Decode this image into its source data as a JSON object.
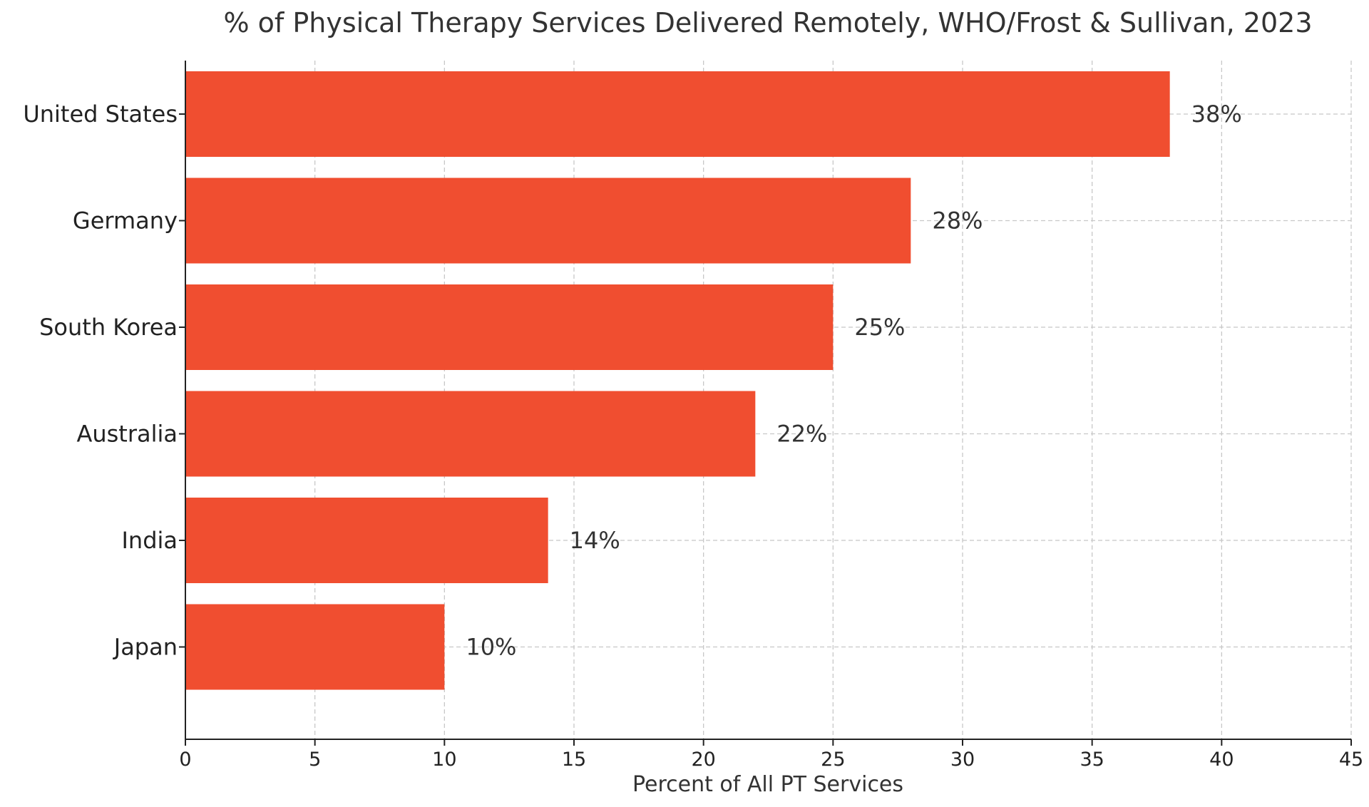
{
  "chart_data": {
    "type": "bar",
    "orientation": "horizontal",
    "title": "% of Physical Therapy Services Delivered Remotely, WHO/Frost & Sullivan, 2023",
    "xlabel": "Percent of All PT Services",
    "ylabel": "",
    "categories": [
      "United States",
      "Germany",
      "South Korea",
      "Australia",
      "India",
      "Japan"
    ],
    "values": [
      38,
      28,
      25,
      22,
      14,
      10
    ],
    "data_labels": [
      "38%",
      "28%",
      "25%",
      "22%",
      "14%",
      "10%"
    ],
    "xlim": [
      0,
      45
    ],
    "xticks": [
      0,
      5,
      10,
      15,
      20,
      25,
      30,
      35,
      40,
      45
    ],
    "grid": true,
    "bar_color": "#F04E30"
  }
}
